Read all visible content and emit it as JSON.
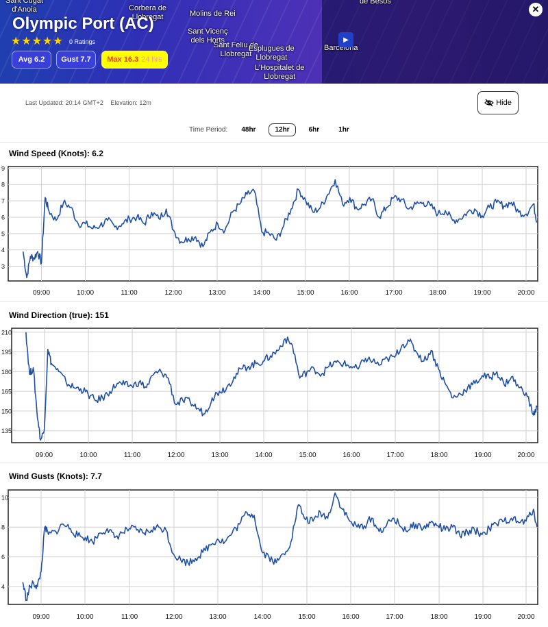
{
  "header": {
    "station_name": "Olympic Port (AC)",
    "rating_stars": 5,
    "ratings_text": "0 Ratings",
    "avg_label": "Avg 6.2",
    "gust_label": "Gust 7.7",
    "max_label": "Max 16.3",
    "max_period": "24 hrs",
    "close_glyph": "✕",
    "map_labels": [
      {
        "text": "Sant Cugat\nd'Anoia"
      },
      {
        "text": "Corbera de\nLlobregat"
      },
      {
        "text": "Molins de Rei"
      },
      {
        "text": "Sant Vicenç\ndels Horts"
      },
      {
        "text": "Sant Feliu de\nLlobregat"
      },
      {
        "text": "Esplugues de\nLlobregat"
      },
      {
        "text": "L'Hospitalet de\nLlobregat"
      },
      {
        "text": "Barcelona"
      },
      {
        "text": "de Besos"
      }
    ]
  },
  "meta": {
    "last_updated": "Last Updated: 20:14 GMT+2",
    "elevation": "Elevation: 12m",
    "hide_label": "Hide"
  },
  "time_period": {
    "label": "Time Period:",
    "options": [
      "48hr",
      "12hr",
      "6hr",
      "1hr"
    ],
    "selected": "12hr"
  },
  "colors": {
    "line": "#1f4fa3",
    "header_accent": "#3a3fd8",
    "max_pill": "#ffff00"
  },
  "chart_data": [
    {
      "type": "line",
      "title": "Wind Speed (Knots): 6.2",
      "x_ticks": [
        "09:00",
        "10:00",
        "11:00",
        "12:00",
        "13:00",
        "14:00",
        "15:00",
        "16:00",
        "17:00",
        "18:00",
        "19:00",
        "20:00"
      ],
      "y_ticks": [
        3,
        4,
        5,
        6,
        7,
        8,
        9
      ],
      "ylim": [
        2.1,
        9.1
      ],
      "x": [
        "08:35",
        "08:40",
        "08:45",
        "08:50",
        "08:55",
        "09:00",
        "09:05",
        "09:10",
        "09:20",
        "09:30",
        "09:40",
        "09:50",
        "10:00",
        "10:10",
        "10:20",
        "10:30",
        "10:40",
        "10:50",
        "11:00",
        "11:10",
        "11:20",
        "11:30",
        "11:40",
        "11:50",
        "12:00",
        "12:10",
        "12:20",
        "12:30",
        "12:40",
        "12:50",
        "13:00",
        "13:10",
        "13:20",
        "13:30",
        "13:40",
        "13:50",
        "14:00",
        "14:10",
        "14:20",
        "14:30",
        "14:40",
        "14:50",
        "15:00",
        "15:10",
        "15:20",
        "15:30",
        "15:40",
        "15:50",
        "16:00",
        "16:10",
        "16:20",
        "16:30",
        "16:40",
        "16:50",
        "17:00",
        "17:10",
        "17:20",
        "17:30",
        "17:40",
        "17:50",
        "18:00",
        "18:10",
        "18:20",
        "18:30",
        "18:40",
        "18:50",
        "19:00",
        "19:10",
        "19:20",
        "19:30",
        "19:40",
        "19:50",
        "20:00",
        "20:10",
        "20:15"
      ],
      "series": [
        {
          "values": [
            3.9,
            2.3,
            3.6,
            3.5,
            3.9,
            3.2,
            7.2,
            6.4,
            5.8,
            6.9,
            6.6,
            5.6,
            5.6,
            5.3,
            5.5,
            5.8,
            5.4,
            5.6,
            5.9,
            6.0,
            5.6,
            6.3,
            5.9,
            6.5,
            5.2,
            4.5,
            4.7,
            4.8,
            4.2,
            5.1,
            5.6,
            5.2,
            6.3,
            6.8,
            7.4,
            7.6,
            5.1,
            5.0,
            4.6,
            5.5,
            6.5,
            7.7,
            7.0,
            6.3,
            6.6,
            7.4,
            8.3,
            6.8,
            7.2,
            6.5,
            6.8,
            7.1,
            6.0,
            6.6,
            7.2,
            7.1,
            6.5,
            6.8,
            6.9,
            6.7,
            6.2,
            6.4,
            5.8,
            5.9,
            6.3,
            6.5,
            6.1,
            6.6,
            6.9,
            6.7,
            6.9,
            6.3,
            6.2,
            6.8,
            5.7
          ]
        }
      ]
    },
    {
      "type": "line",
      "title": "Wind Direction (true): 151",
      "x_ticks": [
        "09:00",
        "10:00",
        "11:00",
        "12:00",
        "13:00",
        "14:00",
        "15:00",
        "16:00",
        "17:00",
        "18:00",
        "19:00",
        "20:00"
      ],
      "y_ticks": [
        135,
        150,
        165,
        180,
        195,
        210
      ],
      "ylim": [
        126,
        213
      ],
      "x": [
        "08:35",
        "08:40",
        "08:45",
        "08:50",
        "08:55",
        "09:00",
        "09:05",
        "09:10",
        "09:20",
        "09:30",
        "09:40",
        "09:50",
        "10:00",
        "10:10",
        "10:20",
        "10:30",
        "10:40",
        "10:50",
        "11:00",
        "11:10",
        "11:20",
        "11:30",
        "11:40",
        "11:50",
        "12:00",
        "12:10",
        "12:20",
        "12:30",
        "12:40",
        "12:50",
        "13:00",
        "13:10",
        "13:20",
        "13:30",
        "13:40",
        "13:50",
        "14:00",
        "14:10",
        "14:20",
        "14:30",
        "14:40",
        "14:50",
        "15:00",
        "15:10",
        "15:20",
        "15:30",
        "15:40",
        "15:50",
        "16:00",
        "16:10",
        "16:20",
        "16:30",
        "16:40",
        "16:50",
        "17:00",
        "17:10",
        "17:20",
        "17:30",
        "17:40",
        "17:50",
        "18:00",
        "18:10",
        "18:20",
        "18:30",
        "18:40",
        "18:50",
        "19:00",
        "19:10",
        "19:20",
        "19:30",
        "19:40",
        "19:50",
        "20:00",
        "20:10",
        "20:15"
      ],
      "series": [
        {
          "values": [
            210,
            178,
            183,
            150,
            128,
            135,
            197,
            186,
            180,
            172,
            168,
            167,
            163,
            158,
            160,
            165,
            171,
            170,
            169,
            172,
            168,
            178,
            180,
            175,
            155,
            158,
            157,
            152,
            148,
            160,
            165,
            168,
            176,
            182,
            184,
            186,
            188,
            192,
            196,
            205,
            200,
            175,
            180,
            182,
            178,
            184,
            187,
            186,
            184,
            182,
            190,
            188,
            185,
            190,
            191,
            200,
            203,
            195,
            188,
            196,
            182,
            170,
            160,
            163,
            168,
            171,
            177,
            175,
            180,
            170,
            176,
            168,
            164,
            147,
            153
          ]
        }
      ]
    },
    {
      "type": "line",
      "title": "Wind Gusts (Knots): 7.7",
      "x_ticks": [
        "09:00",
        "10:00",
        "11:00",
        "12:00",
        "13:00",
        "14:00",
        "15:00",
        "16:00",
        "17:00",
        "18:00",
        "19:00",
        "20:00"
      ],
      "y_ticks": [
        4,
        6,
        8,
        10
      ],
      "ylim": [
        2.8,
        10.5
      ],
      "x": [
        "08:35",
        "08:40",
        "08:45",
        "08:50",
        "08:55",
        "09:00",
        "09:05",
        "09:10",
        "09:20",
        "09:30",
        "09:40",
        "09:50",
        "10:00",
        "10:10",
        "10:20",
        "10:30",
        "10:40",
        "10:50",
        "11:00",
        "11:10",
        "11:20",
        "11:30",
        "11:40",
        "11:50",
        "12:00",
        "12:10",
        "12:20",
        "12:30",
        "12:40",
        "12:50",
        "13:00",
        "13:10",
        "13:20",
        "13:30",
        "13:40",
        "13:50",
        "14:00",
        "14:10",
        "14:20",
        "14:30",
        "14:40",
        "14:50",
        "15:00",
        "15:10",
        "15:20",
        "15:30",
        "15:40",
        "15:50",
        "16:00",
        "16:10",
        "16:20",
        "16:30",
        "16:40",
        "16:50",
        "17:00",
        "17:10",
        "17:20",
        "17:30",
        "17:40",
        "17:50",
        "18:00",
        "18:10",
        "18:20",
        "18:30",
        "18:40",
        "18:50",
        "19:00",
        "19:10",
        "19:20",
        "19:30",
        "19:40",
        "19:50",
        "20:00",
        "20:10",
        "20:15"
      ],
      "series": [
        {
          "values": [
            4.3,
            3.1,
            4.0,
            4.2,
            4.0,
            5.0,
            8.0,
            7.5,
            7.7,
            8.2,
            7.9,
            7.4,
            7.3,
            7.0,
            7.6,
            7.9,
            7.3,
            7.6,
            7.9,
            7.8,
            7.6,
            7.8,
            8.0,
            7.8,
            6.2,
            5.8,
            5.6,
            5.9,
            6.3,
            6.8,
            7.2,
            7.0,
            7.6,
            8.2,
            9.0,
            8.8,
            6.4,
            6.0,
            5.6,
            6.2,
            7.0,
            9.5,
            8.5,
            8.4,
            9.0,
            8.6,
            10.3,
            9.2,
            8.4,
            8.0,
            8.1,
            8.6,
            7.7,
            8.1,
            8.6,
            8.0,
            7.8,
            8.2,
            7.9,
            8.3,
            8.1,
            7.8,
            8.0,
            7.4,
            7.7,
            7.8,
            7.5,
            7.9,
            8.2,
            8.4,
            8.6,
            8.3,
            8.4,
            9.2,
            8.0
          ]
        }
      ]
    }
  ]
}
